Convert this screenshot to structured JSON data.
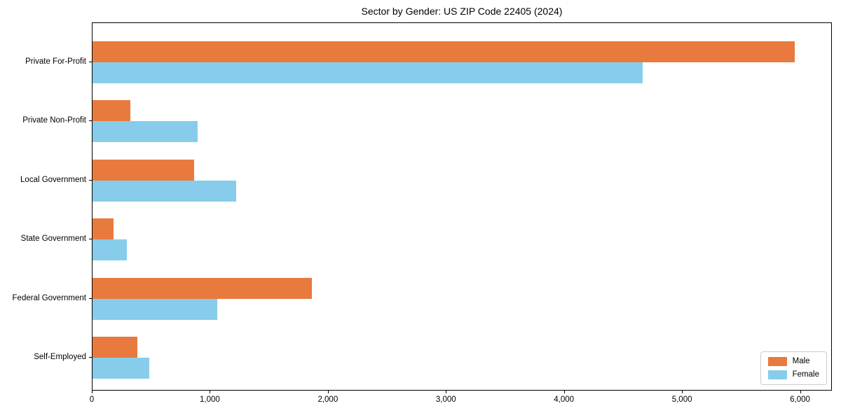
{
  "title": "Sector by Gender: US ZIP Code 22405 (2024)",
  "colors": {
    "male": "#E87A3E",
    "female": "#87CDEB",
    "frame": "#000000",
    "legend_border": "#cccccc",
    "background": "#ffffff"
  },
  "chart_data": {
    "type": "bar",
    "orientation": "horizontal",
    "title": "Sector by Gender: US ZIP Code 22405 (2024)",
    "xlabel": "",
    "ylabel": "",
    "categories": [
      "Private For-Profit",
      "Private Non-Profit",
      "Local Government",
      "State Government",
      "Federal Government",
      "Self-Employed"
    ],
    "series": [
      {
        "name": "Male",
        "color": "#E87A3E",
        "values": [
          5960,
          320,
          860,
          180,
          1860,
          380
        ]
      },
      {
        "name": "Female",
        "color": "#87CDEB",
        "values": [
          4670,
          890,
          1220,
          290,
          1060,
          480
        ]
      }
    ],
    "xlim": [
      0,
      6270
    ],
    "xticks": [
      0,
      1000,
      2000,
      3000,
      4000,
      5000,
      6000
    ],
    "xtick_labels": [
      "0",
      "1,000",
      "2,000",
      "3,000",
      "4,000",
      "5,000",
      "6,000"
    ],
    "grid": false,
    "legend_position": "lower right",
    "legend_entries": [
      "Male",
      "Female"
    ]
  }
}
